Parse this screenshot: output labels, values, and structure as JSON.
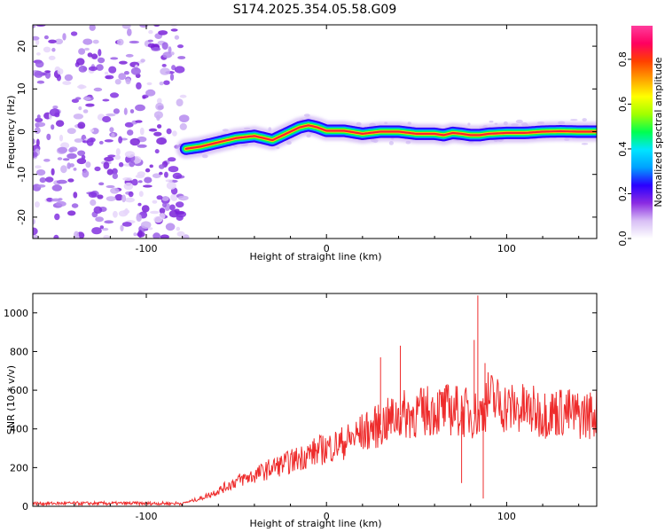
{
  "title": "S174.2025.354.05.58.G09",
  "chart_data": [
    {
      "type": "heatmap",
      "name": "spectrogram",
      "xlabel": "Height of straight line (km)",
      "ylabel": "Frequency (Hz)",
      "xlim": [
        -163,
        150
      ],
      "ylim": [
        -25,
        25
      ],
      "xticks": [
        -100,
        0,
        100
      ],
      "xtick_labels": [
        "-100",
        "0",
        "100"
      ],
      "yticks": [
        20,
        10,
        0,
        -10,
        -20
      ],
      "ytick_labels": [
        "20",
        "10",
        "0",
        "-10",
        "-20"
      ],
      "noise_region_x": [
        -163,
        -78
      ],
      "ridge": {
        "x": [
          -78,
          -70,
          -60,
          -50,
          -40,
          -30,
          -20,
          -15,
          -10,
          -5,
          0,
          10,
          20,
          30,
          40,
          50,
          60,
          65,
          70,
          75,
          80,
          85,
          90,
          100,
          110,
          120,
          130,
          140,
          150
        ],
        "freq": [
          -4,
          -3.5,
          -2.5,
          -1.5,
          -1,
          -2,
          0,
          1,
          1.5,
          1,
          0.2,
          0.2,
          -0.5,
          0,
          0,
          -0.5,
          -0.5,
          -0.8,
          -0.3,
          -0.5,
          -0.8,
          -0.8,
          -0.5,
          -0.3,
          -0.3,
          0,
          0.1,
          0,
          0
        ]
      },
      "colorbar": {
        "label": "Normalized spectral amplitude",
        "ticks": [
          0.0,
          0.2,
          0.4,
          0.6,
          0.8
        ],
        "tick_labels": [
          "0.0",
          "0.2",
          "0.4",
          "0.6",
          "0.8"
        ],
        "range": [
          0,
          0.95
        ],
        "colors": [
          "#ffffff",
          "#d8bff5",
          "#8a2be2",
          "#2a00ff",
          "#00a0ff",
          "#00e5ff",
          "#00ff50",
          "#a0ff00",
          "#ffff00",
          "#ffa000",
          "#ff4000",
          "#ff0060",
          "#ff3c9c"
        ]
      }
    },
    {
      "type": "line",
      "name": "snr",
      "xlabel": "Height of straight line (km)",
      "ylabel": "SNR (10 * v/v)",
      "xlim": [
        -163,
        150
      ],
      "ylim": [
        0,
        1100
      ],
      "xticks": [
        -100,
        0,
        100
      ],
      "xtick_labels": [
        "-100",
        "0",
        "100"
      ],
      "yticks": [
        0,
        200,
        400,
        600,
        800,
        1000
      ],
      "ytick_labels": [
        "0",
        "200",
        "400",
        "600",
        "800",
        "1000"
      ],
      "color": "#ee2c2c",
      "trend": {
        "x": [
          -163,
          -80,
          -70,
          -60,
          -50,
          -40,
          -30,
          -20,
          -10,
          0,
          10,
          20,
          30,
          40,
          50,
          60,
          70,
          80,
          85,
          90,
          100,
          110,
          120,
          130,
          140,
          150
        ],
        "y": [
          15,
          15,
          40,
          80,
          130,
          160,
          200,
          230,
          270,
          300,
          330,
          380,
          420,
          470,
          480,
          500,
          500,
          480,
          470,
          560,
          510,
          500,
          480,
          490,
          470,
          480
        ]
      },
      "spikes": [
        {
          "x": 84,
          "y": 1090
        },
        {
          "x": 87,
          "y": 40
        },
        {
          "x": 82,
          "y": 860
        },
        {
          "x": 75,
          "y": 120
        },
        {
          "x": 30,
          "y": 770
        },
        {
          "x": 41,
          "y": 830
        },
        {
          "x": 88,
          "y": 740
        }
      ]
    }
  ]
}
